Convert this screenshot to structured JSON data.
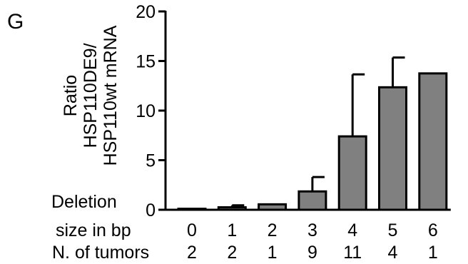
{
  "panel_label": "G",
  "chart_data": {
    "type": "bar",
    "categories": [
      "0",
      "1",
      "2",
      "3",
      "4",
      "5",
      "6"
    ],
    "values": [
      0.1,
      0.25,
      0.55,
      1.85,
      7.4,
      12.35,
      13.75
    ],
    "errors": [
      0.0,
      0.2,
      0.0,
      1.45,
      6.25,
      3.0,
      0.0
    ],
    "row_labels": [
      "Deletion",
      "size in bp",
      "N. of tumors"
    ],
    "tumor_counts": [
      "2",
      "2",
      "1",
      "9",
      "11",
      "4",
      "1"
    ],
    "ylabel_lines": [
      "Ratio",
      "HSP110DE9/",
      "HSP110wt mRNA"
    ],
    "yticks": [
      "0",
      "5",
      "10",
      "15",
      "20"
    ],
    "ylim": [
      0,
      20
    ],
    "bar_color": "#808080",
    "grid": false
  }
}
